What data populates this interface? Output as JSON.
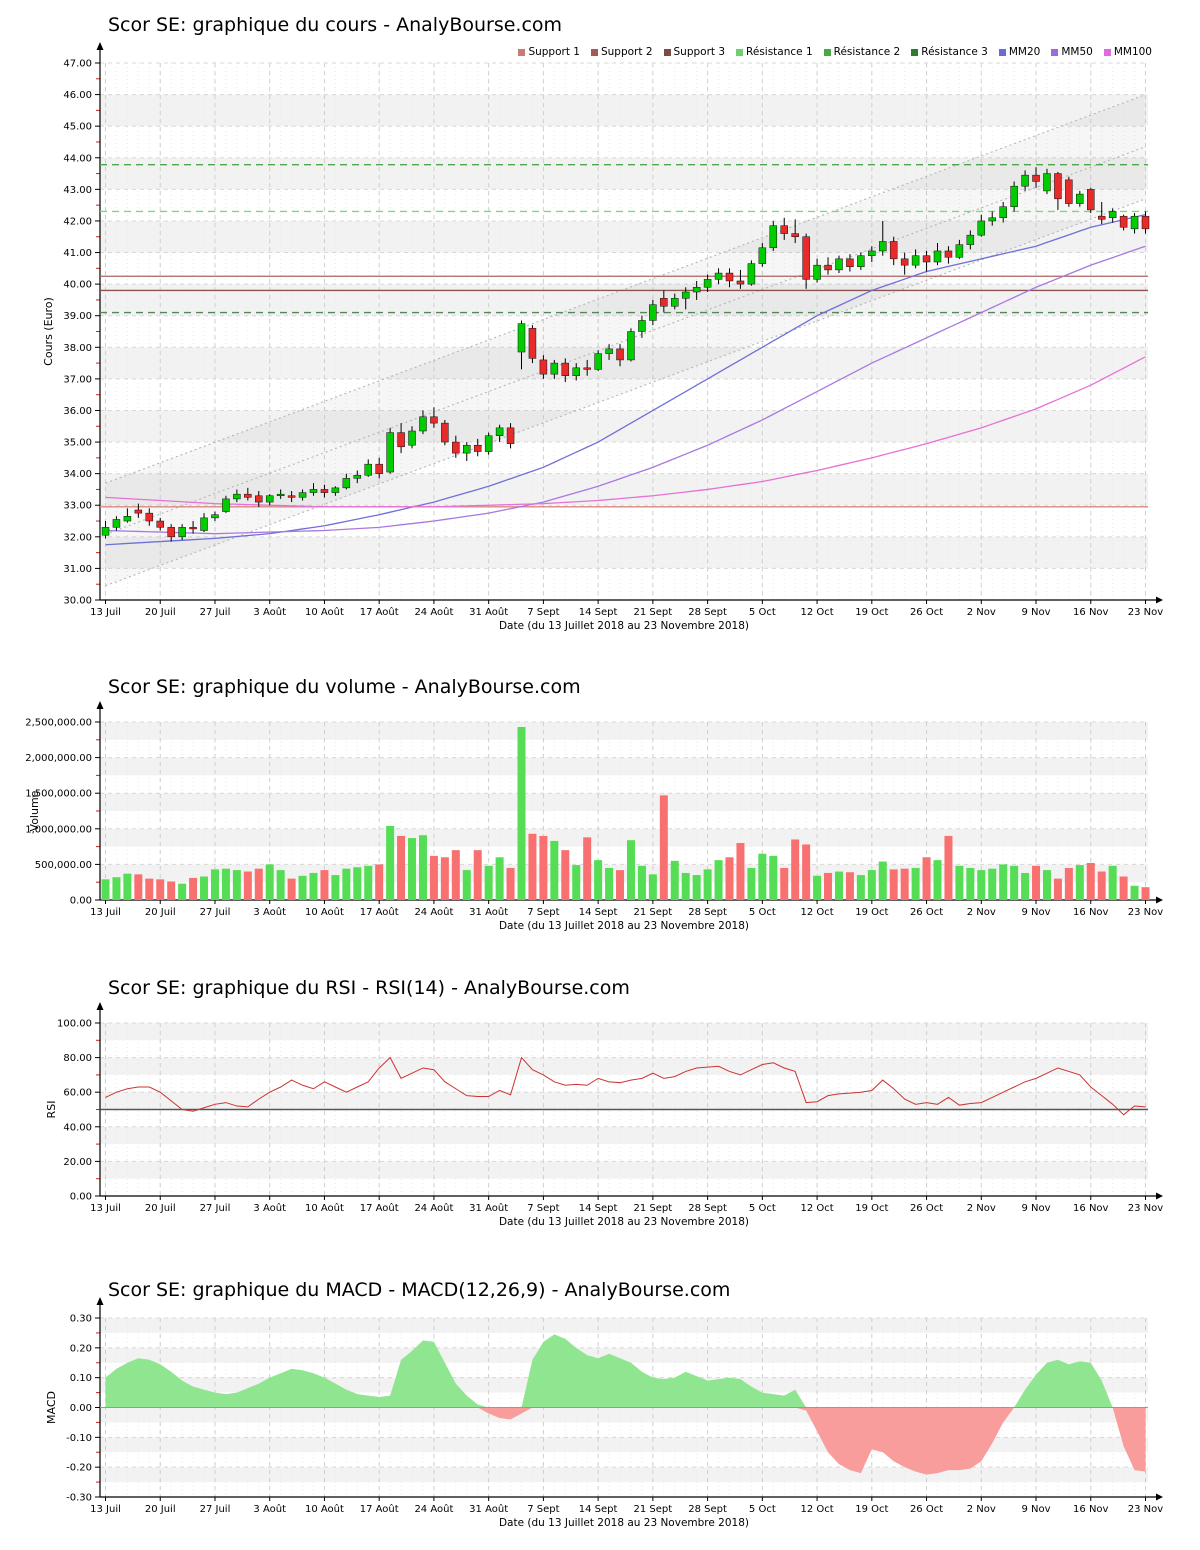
{
  "page": {
    "background": "#ffffff"
  },
  "xaxis": {
    "labels": [
      "13 Juil",
      "20 Juil",
      "27 Juil",
      "3 Août",
      "10 Août",
      "17 Août",
      "24 Août",
      "31 Août",
      "7 Sept",
      "14 Sept",
      "21 Sept",
      "28 Sept",
      "5 Oct",
      "12 Oct",
      "19 Oct",
      "26 Oct",
      "2 Nov",
      "9 Nov",
      "16 Nov",
      "23 Nov"
    ],
    "xlabel": "Date (du 13 Juillet 2018 au 23 Novembre 2018)"
  },
  "chart_data": [
    {
      "type": "candlestick",
      "title": "Scor SE: graphique du cours - AnalyBourse.com",
      "ylabel": "Cours (Euro)",
      "ylim": [
        30.0,
        47.0
      ],
      "ytick": 1.0,
      "legend": [
        {
          "label": "Support 1",
          "color": "#CC7B72"
        },
        {
          "label": "Support 2",
          "color": "#A45A52"
        },
        {
          "label": "Support 3",
          "color": "#7E4A44"
        },
        {
          "label": "Résistance 1",
          "color": "#6FD06F"
        },
        {
          "label": "Résistance 2",
          "color": "#44AA44"
        },
        {
          "label": "Résistance 3",
          "color": "#2E7D2E"
        },
        {
          "label": "MM20",
          "color": "#6A6AE0"
        },
        {
          "label": "MM50",
          "color": "#9A6AE0"
        },
        {
          "label": "MM100",
          "color": "#E06AE0"
        }
      ],
      "support_lines": [
        {
          "name": "Support 1",
          "value": 32.95,
          "color": "#D98880"
        },
        {
          "name": "Support 2",
          "value": 40.25,
          "color": "#A96562"
        },
        {
          "name": "Support 3",
          "value": 39.8,
          "color": "#8A534E"
        }
      ],
      "resistance_lines": [
        {
          "name": "Résistance 1",
          "value": 42.3,
          "color": "#7FD87F"
        },
        {
          "name": "Résistance 2",
          "value": 43.78,
          "color": "#4CA64C"
        },
        {
          "name": "Résistance 3",
          "value": 39.1,
          "color": "#55875A"
        }
      ],
      "regression_channel": {
        "lower_start": 30.45,
        "lower_end": 42.7,
        "upper_start": 33.7,
        "upper_end": 46.0,
        "mid_start": 32.08,
        "mid_end": 44.35,
        "line_color": "#B5B5B5",
        "fill_color": "rgba(130,130,130,0.07)"
      },
      "colors": {
        "up": "#00CC00",
        "down": "#E82A2A",
        "wick": "#000000"
      },
      "candles_ohlc": [
        [
          32.05,
          32.5,
          31.95,
          32.3
        ],
        [
          32.3,
          32.65,
          32.2,
          32.55
        ],
        [
          32.5,
          32.9,
          32.45,
          32.65
        ],
        [
          32.85,
          33.05,
          32.6,
          32.75
        ],
        [
          32.75,
          32.9,
          32.35,
          32.5
        ],
        [
          32.5,
          32.6,
          32.2,
          32.3
        ],
        [
          32.3,
          32.4,
          31.85,
          32.0
        ],
        [
          32.0,
          32.4,
          31.9,
          32.3
        ],
        [
          32.3,
          32.5,
          32.1,
          32.25
        ],
        [
          32.2,
          32.75,
          32.15,
          32.6
        ],
        [
          32.6,
          32.8,
          32.5,
          32.7
        ],
        [
          32.8,
          33.3,
          32.75,
          33.2
        ],
        [
          33.2,
          33.5,
          33.1,
          33.35
        ],
        [
          33.35,
          33.55,
          33.15,
          33.25
        ],
        [
          33.3,
          33.45,
          32.95,
          33.1
        ],
        [
          33.1,
          33.35,
          33.0,
          33.3
        ],
        [
          33.3,
          33.5,
          33.2,
          33.35
        ],
        [
          33.3,
          33.45,
          33.1,
          33.25
        ],
        [
          33.25,
          33.5,
          33.15,
          33.4
        ],
        [
          33.4,
          33.7,
          33.3,
          33.5
        ],
        [
          33.5,
          33.65,
          33.25,
          33.4
        ],
        [
          33.4,
          33.6,
          33.3,
          33.55
        ],
        [
          33.55,
          34.0,
          33.5,
          33.85
        ],
        [
          33.85,
          34.1,
          33.7,
          33.95
        ],
        [
          33.95,
          34.45,
          33.9,
          34.3
        ],
        [
          34.3,
          34.5,
          33.85,
          34.0
        ],
        [
          34.05,
          35.45,
          34.0,
          35.3
        ],
        [
          35.3,
          35.6,
          34.65,
          34.85
        ],
        [
          34.9,
          35.5,
          34.8,
          35.35
        ],
        [
          35.35,
          36.0,
          35.25,
          35.8
        ],
        [
          35.8,
          36.1,
          35.45,
          35.6
        ],
        [
          35.6,
          35.7,
          34.9,
          35.0
        ],
        [
          35.0,
          35.2,
          34.5,
          34.65
        ],
        [
          34.65,
          35.0,
          34.4,
          34.9
        ],
        [
          34.9,
          35.1,
          34.55,
          34.7
        ],
        [
          34.7,
          35.3,
          34.6,
          35.2
        ],
        [
          35.2,
          35.55,
          35.0,
          35.45
        ],
        [
          35.45,
          35.6,
          34.8,
          34.95
        ],
        [
          37.85,
          38.85,
          37.3,
          38.75
        ],
        [
          38.6,
          38.7,
          37.5,
          37.65
        ],
        [
          37.6,
          37.75,
          37.0,
          37.15
        ],
        [
          37.15,
          37.6,
          37.0,
          37.5
        ],
        [
          37.5,
          37.65,
          36.9,
          37.1
        ],
        [
          37.1,
          37.5,
          36.95,
          37.35
        ],
        [
          37.35,
          37.6,
          37.1,
          37.3
        ],
        [
          37.3,
          37.9,
          37.25,
          37.8
        ],
        [
          37.8,
          38.1,
          37.6,
          37.95
        ],
        [
          37.95,
          38.1,
          37.4,
          37.6
        ],
        [
          37.6,
          38.6,
          37.55,
          38.5
        ],
        [
          38.5,
          39.0,
          38.3,
          38.85
        ],
        [
          38.85,
          39.5,
          38.7,
          39.35
        ],
        [
          39.55,
          39.8,
          39.1,
          39.3
        ],
        [
          39.3,
          39.7,
          39.2,
          39.55
        ],
        [
          39.55,
          39.9,
          39.2,
          39.75
        ],
        [
          39.75,
          40.1,
          39.5,
          39.9
        ],
        [
          39.9,
          40.3,
          39.75,
          40.15
        ],
        [
          40.15,
          40.5,
          40.0,
          40.35
        ],
        [
          40.35,
          40.5,
          39.9,
          40.1
        ],
        [
          40.1,
          40.45,
          39.85,
          40.0
        ],
        [
          40.0,
          40.75,
          39.95,
          40.65
        ],
        [
          40.65,
          41.3,
          40.55,
          41.15
        ],
        [
          41.15,
          42.0,
          41.05,
          41.85
        ],
        [
          41.85,
          42.1,
          41.4,
          41.6
        ],
        [
          41.6,
          42.05,
          41.3,
          41.5
        ],
        [
          41.5,
          41.6,
          39.85,
          40.15
        ],
        [
          40.15,
          40.8,
          40.05,
          40.6
        ],
        [
          40.6,
          40.85,
          40.3,
          40.45
        ],
        [
          40.45,
          40.9,
          40.35,
          40.8
        ],
        [
          40.8,
          40.95,
          40.4,
          40.55
        ],
        [
          40.55,
          41.0,
          40.45,
          40.9
        ],
        [
          40.9,
          41.2,
          40.7,
          41.05
        ],
        [
          41.05,
          42.0,
          40.9,
          41.35
        ],
        [
          41.35,
          41.5,
          40.6,
          40.8
        ],
        [
          40.8,
          41.0,
          40.3,
          40.6
        ],
        [
          40.6,
          41.1,
          40.5,
          40.9
        ],
        [
          40.9,
          41.05,
          40.4,
          40.7
        ],
        [
          40.7,
          41.3,
          40.6,
          41.05
        ],
        [
          41.05,
          41.2,
          40.65,
          40.85
        ],
        [
          40.85,
          41.4,
          40.8,
          41.25
        ],
        [
          41.25,
          41.7,
          41.1,
          41.55
        ],
        [
          41.55,
          42.2,
          41.5,
          42.0
        ],
        [
          42.0,
          42.3,
          41.85,
          42.1
        ],
        [
          42.1,
          42.6,
          41.95,
          42.45
        ],
        [
          42.45,
          43.25,
          42.3,
          43.1
        ],
        [
          43.1,
          43.6,
          42.95,
          43.45
        ],
        [
          43.45,
          43.7,
          43.05,
          43.25
        ],
        [
          42.95,
          43.65,
          42.85,
          43.5
        ],
        [
          43.5,
          43.55,
          42.35,
          42.7
        ],
        [
          43.3,
          43.4,
          42.45,
          42.55
        ],
        [
          42.55,
          42.95,
          42.45,
          42.85
        ],
        [
          43.0,
          43.05,
          42.25,
          42.35
        ],
        [
          42.15,
          42.6,
          41.9,
          42.05
        ],
        [
          42.1,
          42.4,
          41.95,
          42.3
        ],
        [
          42.15,
          42.2,
          41.7,
          41.8
        ],
        [
          41.75,
          42.25,
          41.6,
          42.15
        ],
        [
          42.15,
          42.3,
          41.6,
          41.75
        ]
      ],
      "moving_averages": {
        "mm20": {
          "label": "MM20",
          "color": "#6F6FD8",
          "anchor_step": 5,
          "anchors": [
            31.75,
            31.85,
            31.95,
            32.1,
            32.35,
            32.7,
            33.1,
            33.6,
            34.2,
            35.0,
            36.0,
            37.0,
            38.0,
            39.0,
            39.8,
            40.4,
            40.8,
            41.2,
            41.8,
            42.2
          ]
        },
        "mm50": {
          "label": "MM50",
          "color": "#A878E0",
          "anchor_step": 5,
          "anchors": [
            32.2,
            32.15,
            32.1,
            32.15,
            32.2,
            32.3,
            32.5,
            32.75,
            33.1,
            33.6,
            34.2,
            34.9,
            35.7,
            36.6,
            37.5,
            38.3,
            39.1,
            39.9,
            40.6,
            41.2
          ]
        },
        "mm100": {
          "label": "MM100",
          "color": "#E670D6",
          "anchor_step": 5,
          "anchors": [
            33.25,
            33.15,
            33.05,
            33.0,
            32.95,
            32.95,
            32.95,
            33.0,
            33.05,
            33.15,
            33.3,
            33.5,
            33.75,
            34.1,
            34.5,
            34.95,
            35.45,
            36.05,
            36.8,
            37.7
          ]
        }
      }
    },
    {
      "type": "bar",
      "title": "Scor SE: graphique du volume - AnalyBourse.com",
      "ylabel": "Volume",
      "ylim": [
        0,
        2500000
      ],
      "ytick": 500000,
      "colors": {
        "up": "#55DD55",
        "down": "#F87070"
      },
      "values": [
        290000,
        320000,
        370000,
        360000,
        300000,
        290000,
        260000,
        230000,
        310000,
        330000,
        430000,
        440000,
        420000,
        400000,
        440000,
        500000,
        420000,
        300000,
        340000,
        380000,
        420000,
        350000,
        440000,
        460000,
        480000,
        500000,
        1040000,
        900000,
        870000,
        910000,
        620000,
        600000,
        700000,
        420000,
        700000,
        480000,
        600000,
        450000,
        2430000,
        930000,
        900000,
        830000,
        700000,
        490000,
        880000,
        560000,
        450000,
        420000,
        840000,
        480000,
        360000,
        1470000,
        550000,
        380000,
        350000,
        430000,
        560000,
        600000,
        800000,
        450000,
        650000,
        620000,
        450000,
        850000,
        780000,
        340000,
        380000,
        400000,
        390000,
        350000,
        420000,
        540000,
        430000,
        440000,
        450000,
        600000,
        560000,
        900000,
        480000,
        450000,
        420000,
        440000,
        500000,
        480000,
        380000,
        480000,
        420000,
        300000,
        450000,
        490000,
        520000,
        400000,
        480000,
        330000,
        200000,
        180000
      ]
    },
    {
      "type": "line",
      "title": "Scor SE: graphique du RSI - RSI(14) - AnalyBourse.com",
      "ylabel": "RSI",
      "ylim": [
        0,
        100
      ],
      "ytick": 20,
      "midline": {
        "value": 50,
        "color": "#555555"
      },
      "line_color": "#CC3333",
      "values": [
        57,
        60,
        62,
        63,
        63,
        60,
        55,
        50,
        49,
        51,
        53,
        54,
        52,
        51.5,
        56,
        60,
        63,
        67,
        64,
        62,
        66,
        63,
        60,
        63,
        66,
        74,
        80,
        68,
        71,
        74,
        73,
        66,
        62,
        58,
        57.5,
        57.5,
        61,
        58.5,
        80,
        73,
        70,
        66,
        64,
        64.5,
        64,
        68,
        66,
        65.5,
        67,
        68,
        71,
        68,
        69,
        72,
        74,
        74.5,
        75,
        72,
        70,
        73,
        76,
        77,
        74,
        72,
        54,
        54.5,
        58,
        59,
        59.5,
        60,
        61,
        67,
        62,
        56,
        53,
        54,
        53,
        57,
        52.5,
        53.5,
        54,
        57,
        60,
        63,
        66,
        68,
        71,
        74,
        72,
        70,
        63,
        58,
        53,
        47,
        52,
        51.5
      ]
    },
    {
      "type": "area",
      "title": "Scor SE: graphique du MACD - MACD(12,26,9) - AnalyBourse.com",
      "ylabel": "MACD",
      "ylim": [
        -0.3,
        0.3
      ],
      "ytick": 0.1,
      "colors": {
        "positive": "#90E690",
        "negative": "#F89C9C"
      },
      "values": [
        0.1,
        0.13,
        0.15,
        0.165,
        0.16,
        0.145,
        0.12,
        0.09,
        0.07,
        0.06,
        0.05,
        0.045,
        0.05,
        0.065,
        0.08,
        0.1,
        0.115,
        0.13,
        0.125,
        0.115,
        0.1,
        0.08,
        0.06,
        0.045,
        0.04,
        0.035,
        0.04,
        0.16,
        0.19,
        0.225,
        0.22,
        0.15,
        0.08,
        0.04,
        0.01,
        -0.02,
        -0.035,
        -0.04,
        -0.02,
        0.16,
        0.22,
        0.245,
        0.23,
        0.2,
        0.175,
        0.165,
        0.18,
        0.165,
        0.15,
        0.12,
        0.1,
        0.095,
        0.1,
        0.12,
        0.105,
        0.09,
        0.095,
        0.1,
        0.095,
        0.07,
        0.05,
        0.045,
        0.04,
        0.06,
        -0.01,
        -0.08,
        -0.15,
        -0.19,
        -0.21,
        -0.22,
        -0.14,
        -0.15,
        -0.18,
        -0.2,
        -0.215,
        -0.225,
        -0.22,
        -0.21,
        -0.21,
        -0.205,
        -0.18,
        -0.12,
        -0.05,
        0.0,
        0.06,
        0.11,
        0.15,
        0.16,
        0.145,
        0.155,
        0.15,
        0.09,
        0.0,
        -0.13,
        -0.21,
        -0.215
      ]
    }
  ]
}
